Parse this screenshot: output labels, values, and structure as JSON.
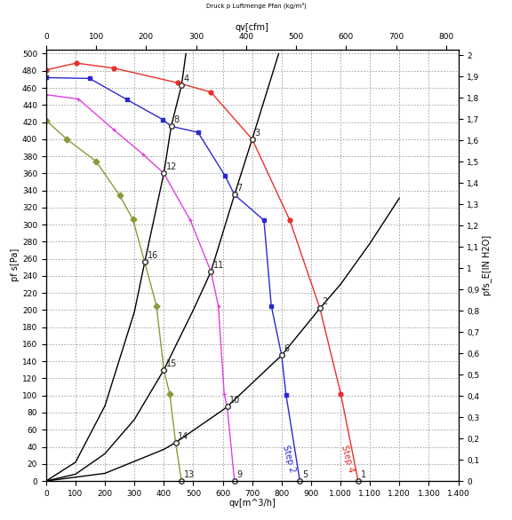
{
  "chart_data": {
    "type": "line",
    "title": "Druck p Luftmenge Pfan (kg/m³)",
    "x_label": "qv[m^3/h]",
    "y_label": "pf s[Pa]",
    "x2_label": "qv[cfm]",
    "y2_label": "pfs_E[IN H2O]",
    "xlim": [
      0,
      1400
    ],
    "xticks": [
      0,
      100,
      200,
      300,
      400,
      500,
      600,
      700,
      800,
      900,
      {
        "value": 1000,
        "label": "1.000"
      },
      {
        "value": 1100,
        "label": "1.100"
      },
      {
        "value": 1200,
        "label": "1.200"
      },
      {
        "value": 1300,
        "label": "1.300"
      },
      {
        "value": 1400,
        "label": "1.400"
      }
    ],
    "ylim": [
      0,
      505
    ],
    "yticks": [
      0,
      20,
      40,
      60,
      80,
      100,
      120,
      140,
      160,
      180,
      200,
      220,
      240,
      260,
      280,
      300,
      320,
      340,
      360,
      380,
      400,
      420,
      440,
      460,
      480,
      500
    ],
    "x2lim": [
      0,
      824
    ],
    "x2ticks": [
      0,
      100,
      200,
      300,
      400,
      500,
      600,
      700,
      800
    ],
    "y2lim": [
      0,
      2.027
    ],
    "y2ticks": [
      0,
      {
        "value": 0.1,
        "label": "0,1"
      },
      {
        "value": 0.2,
        "label": "0,2"
      },
      {
        "value": 0.3,
        "label": "0,3"
      },
      {
        "value": 0.4,
        "label": "0,4"
      },
      {
        "value": 0.5,
        "label": "0,5"
      },
      {
        "value": 0.6,
        "label": "0,6"
      },
      {
        "value": 0.7,
        "label": "0,7"
      },
      {
        "value": 0.8,
        "label": "0,8"
      },
      {
        "value": 0.9,
        "label": "0,9"
      },
      1,
      {
        "value": 1.1,
        "label": "1,1"
      },
      {
        "value": 1.2,
        "label": "1,2"
      },
      {
        "value": 1.3,
        "label": "1,3"
      },
      {
        "value": 1.4,
        "label": "1,4"
      },
      {
        "value": 1.5,
        "label": "1,5"
      },
      {
        "value": 1.6,
        "label": "1,6"
      },
      {
        "value": 1.7,
        "label": "1,7"
      },
      {
        "value": 1.8,
        "label": "1,8"
      },
      {
        "value": 1.9,
        "label": "1,9"
      },
      2
    ],
    "grid": true,
    "series": [
      {
        "name": "Step 4",
        "color": "#e8302a",
        "marker": "circle",
        "line_style": "solid",
        "x": [
          0,
          103,
          231,
          446,
          560,
          700,
          828,
          930,
          1001,
          1060
        ],
        "values": [
          481,
          489,
          483,
          466,
          455,
          400,
          305,
          202,
          102,
          0
        ]
      },
      {
        "name": "Step 2",
        "color": "#2a2ad0",
        "marker": "square",
        "line_style": "solid",
        "x": [
          0,
          148,
          276,
          396,
          425,
          516,
          608,
          640,
          740,
          765,
          800,
          815,
          862
        ],
        "values": [
          472,
          471,
          446,
          423,
          415,
          408,
          357,
          335,
          305,
          205,
          147,
          101,
          0
        ]
      },
      {
        "color": "#e040e0",
        "marker": "plus",
        "line_style": "solid",
        "x": [
          0,
          110,
          230,
          330,
          400,
          490,
          560,
          585,
          605,
          615,
          640
        ],
        "values": [
          452,
          447,
          411,
          382,
          360,
          305,
          245,
          205,
          102,
          87,
          0
        ]
      },
      {
        "color": "#8a9a3a",
        "marker": "diamond",
        "line_style": "solid",
        "x": [
          0,
          70,
          170,
          250,
          295,
          335,
          375,
          400,
          420,
          440,
          460
        ],
        "values": [
          422,
          400,
          374,
          334,
          306,
          256,
          205,
          130,
          102,
          45,
          0
        ]
      },
      {
        "color": "#000000",
        "marker": "none",
        "line_style": "solid",
        "x": [
          0,
          100,
          200,
          300,
          335,
          400,
          425,
          460,
          475
        ],
        "values": [
          0,
          22,
          88,
          198,
          256,
          360,
          415,
          463,
          500
        ]
      },
      {
        "color": "#000000",
        "marker": "none",
        "line_style": "solid",
        "x": [
          0,
          100,
          200,
          300,
          400,
          500,
          560,
          640,
          700,
          790
        ],
        "values": [
          0,
          8,
          32,
          72,
          130,
          200,
          245,
          335,
          400,
          500
        ]
      },
      {
        "color": "#000000",
        "marker": "none",
        "line_style": "solid",
        "x": [
          0,
          200,
          400,
          440,
          600,
          615,
          800,
          930,
          1000,
          1100,
          1200
        ],
        "values": [
          0,
          9,
          37,
          45,
          83,
          87,
          147,
          202,
          230,
          278,
          331
        ]
      }
    ],
    "annotations": [
      {
        "text": "1",
        "x": 1060,
        "y": 0
      },
      {
        "text": "2",
        "x": 930,
        "y": 202
      },
      {
        "text": "3",
        "x": 700,
        "y": 400
      },
      {
        "text": "4",
        "x": 460,
        "y": 463
      },
      {
        "text": "5",
        "x": 862,
        "y": 0
      },
      {
        "text": "6",
        "x": 800,
        "y": 147
      },
      {
        "text": "7",
        "x": 640,
        "y": 335
      },
      {
        "text": "8",
        "x": 425,
        "y": 415
      },
      {
        "text": "9",
        "x": 640,
        "y": 0
      },
      {
        "text": "10",
        "x": 615,
        "y": 87
      },
      {
        "text": "11",
        "x": 560,
        "y": 245
      },
      {
        "text": "12",
        "x": 400,
        "y": 360
      },
      {
        "text": "13",
        "x": 460,
        "y": 0
      },
      {
        "text": "14",
        "x": 440,
        "y": 45
      },
      {
        "text": "15",
        "x": 400,
        "y": 130
      },
      {
        "text": "16",
        "x": 335,
        "y": 256
      }
    ]
  }
}
